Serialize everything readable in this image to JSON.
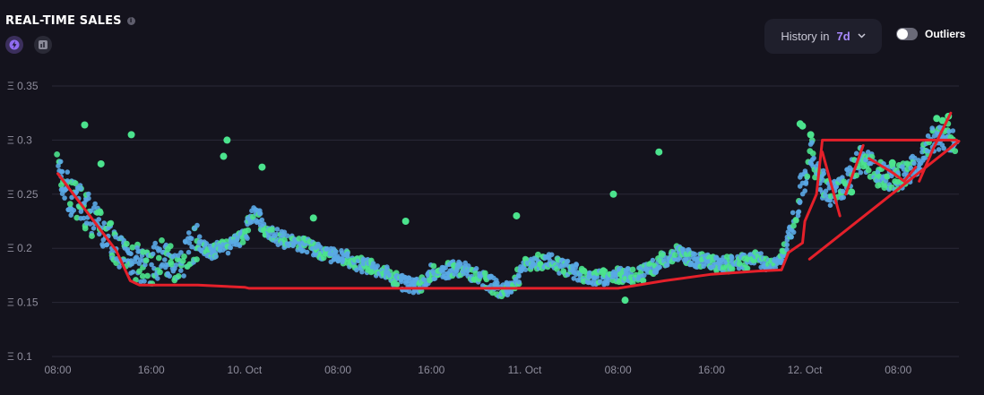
{
  "header": {
    "title": "REAL-TIME SALES",
    "info_icon": "info-icon",
    "mode_icons": [
      "lightning-icon",
      "bar-chart-icon"
    ]
  },
  "controls": {
    "history_label": "History in",
    "history_value": "7d",
    "history_icon": "chevron-down-icon",
    "outliers_label": "Outliers",
    "outliers_on": false
  },
  "colors": {
    "background": "#14131d",
    "accent": "#a98bff",
    "dot_blue": "#5aa9e6",
    "dot_green": "#4be38d",
    "annotation": "#e5202a"
  },
  "chart_data": {
    "type": "scatter",
    "title": "REAL-TIME SALES",
    "xlabel": "",
    "ylabel": "",
    "y_ticks": [
      "Ξ 0.35",
      "Ξ 0.3",
      "Ξ 0.25",
      "Ξ 0.2",
      "Ξ 0.15",
      "Ξ 0.1"
    ],
    "y_tick_values": [
      0.35,
      0.3,
      0.25,
      0.2,
      0.15,
      0.1
    ],
    "ylim": [
      0.1,
      0.35
    ],
    "x_ticks": [
      "08:00",
      "16:00",
      "10. Oct",
      "08:00",
      "16:00",
      "11. Oct",
      "08:00",
      "16:00",
      "12. Oct",
      "08:00"
    ],
    "x_tick_hours": [
      8,
      16,
      24,
      32,
      40,
      48,
      56,
      64,
      72,
      80
    ],
    "x_unit": "hours from 9 Oct 00:00",
    "xlim": [
      7.5,
      85.2
    ],
    "grid": "horizontal",
    "legend": "none",
    "trend": [
      [
        8,
        0.272
      ],
      [
        9,
        0.25
      ],
      [
        10,
        0.24
      ],
      [
        11,
        0.228
      ],
      [
        12,
        0.216
      ],
      [
        13,
        0.202
      ],
      [
        14,
        0.192
      ],
      [
        15,
        0.185
      ],
      [
        16,
        0.184
      ],
      [
        17,
        0.195
      ],
      [
        17.8,
        0.19
      ],
      [
        18.5,
        0.18
      ],
      [
        19,
        0.2
      ],
      [
        20,
        0.206
      ],
      [
        21,
        0.196
      ],
      [
        22,
        0.2
      ],
      [
        23,
        0.205
      ],
      [
        24,
        0.21
      ],
      [
        24.5,
        0.228
      ],
      [
        25,
        0.232
      ],
      [
        26,
        0.214
      ],
      [
        27,
        0.21
      ],
      [
        28,
        0.205
      ],
      [
        29,
        0.203
      ],
      [
        30,
        0.2
      ],
      [
        31,
        0.195
      ],
      [
        32,
        0.193
      ],
      [
        33,
        0.19
      ],
      [
        34,
        0.185
      ],
      [
        35,
        0.182
      ],
      [
        36,
        0.178
      ],
      [
        37,
        0.17
      ],
      [
        38,
        0.166
      ],
      [
        39,
        0.166
      ],
      [
        40,
        0.178
      ],
      [
        41,
        0.178
      ],
      [
        42,
        0.182
      ],
      [
        43,
        0.18
      ],
      [
        44,
        0.174
      ],
      [
        45,
        0.168
      ],
      [
        46,
        0.16
      ],
      [
        47,
        0.165
      ],
      [
        48,
        0.185
      ],
      [
        49,
        0.188
      ],
      [
        50,
        0.188
      ],
      [
        51,
        0.184
      ],
      [
        52,
        0.18
      ],
      [
        53,
        0.175
      ],
      [
        54,
        0.173
      ],
      [
        55,
        0.173
      ],
      [
        56,
        0.176
      ],
      [
        57,
        0.174
      ],
      [
        58,
        0.176
      ],
      [
        59,
        0.182
      ],
      [
        60,
        0.19
      ],
      [
        61,
        0.196
      ],
      [
        62,
        0.192
      ],
      [
        63,
        0.188
      ],
      [
        64,
        0.187
      ],
      [
        65,
        0.185
      ],
      [
        66,
        0.186
      ],
      [
        67,
        0.188
      ],
      [
        68,
        0.19
      ],
      [
        69,
        0.185
      ],
      [
        70,
        0.192
      ],
      [
        71,
        0.22
      ],
      [
        71.5,
        0.25
      ],
      [
        72,
        0.265
      ],
      [
        72.5,
        0.29
      ],
      [
        73,
        0.27
      ],
      [
        74,
        0.25
      ],
      [
        75,
        0.252
      ],
      [
        76,
        0.27
      ],
      [
        77,
        0.285
      ],
      [
        78,
        0.272
      ],
      [
        79,
        0.265
      ],
      [
        80,
        0.265
      ],
      [
        81,
        0.27
      ],
      [
        82,
        0.285
      ],
      [
        83,
        0.3
      ],
      [
        84,
        0.305
      ],
      [
        85,
        0.3
      ]
    ],
    "outlier_points": [
      [
        10.3,
        0.314
      ],
      [
        14.3,
        0.305
      ],
      [
        22.5,
        0.3
      ],
      [
        22.2,
        0.285
      ],
      [
        11.7,
        0.278
      ],
      [
        25.5,
        0.275
      ],
      [
        29.9,
        0.228
      ],
      [
        37.8,
        0.225
      ],
      [
        47.3,
        0.23
      ],
      [
        55.6,
        0.25
      ],
      [
        59.5,
        0.289
      ],
      [
        71.6,
        0.315
      ],
      [
        71.8,
        0.313
      ],
      [
        72.5,
        0.305
      ],
      [
        56.6,
        0.152
      ],
      [
        76,
        0.252
      ],
      [
        79.5,
        0.279
      ],
      [
        83.3,
        0.32
      ],
      [
        83.8,
        0.318
      ],
      [
        84.3,
        0.322
      ]
    ],
    "annotation_lines": [
      [
        [
          8,
          0.269
        ],
        [
          13,
          0.198
        ],
        [
          14.2,
          0.17
        ],
        [
          15,
          0.166
        ],
        [
          20,
          0.166
        ],
        [
          24,
          0.164
        ],
        [
          24.4,
          0.163
        ],
        [
          29,
          0.163
        ],
        [
          33,
          0.163
        ],
        [
          40,
          0.163
        ],
        [
          48,
          0.163
        ],
        [
          56,
          0.163
        ],
        [
          60,
          0.17
        ],
        [
          64,
          0.176
        ],
        [
          68,
          0.179
        ],
        [
          70,
          0.18
        ],
        [
          70.6,
          0.196
        ],
        [
          71.8,
          0.205
        ],
        [
          72,
          0.225
        ],
        [
          73,
          0.25
        ],
        [
          73.5,
          0.3
        ],
        [
          78,
          0.3
        ],
        [
          79.2,
          0.3
        ],
        [
          85,
          0.3
        ]
      ],
      [
        [
          73.5,
          0.289
        ],
        [
          75,
          0.23
        ]
      ],
      [
        [
          75.5,
          0.25
        ],
        [
          77,
          0.295
        ]
      ],
      [
        [
          77.5,
          0.283
        ],
        [
          79.5,
          0.27
        ],
        [
          80.5,
          0.262
        ],
        [
          81.5,
          0.275
        ]
      ],
      [
        [
          81.8,
          0.262
        ],
        [
          83,
          0.292
        ],
        [
          84.5,
          0.325
        ]
      ],
      [
        [
          72.4,
          0.19
        ],
        [
          85.2,
          0.299
        ]
      ]
    ]
  }
}
